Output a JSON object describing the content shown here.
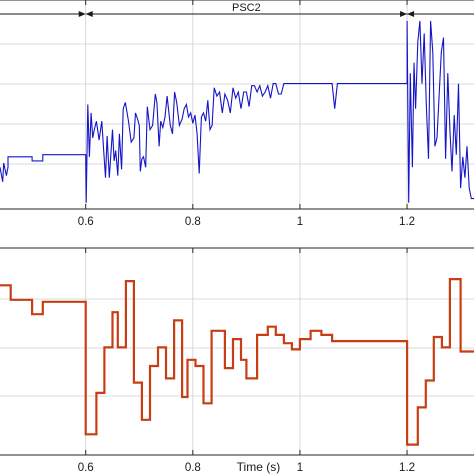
{
  "chart_data": [
    {
      "type": "line",
      "panel": "top",
      "xlim": [
        0.44,
        1.325
      ],
      "ylim": [
        0,
        10
      ],
      "xticks": [
        "0.6",
        "0.8",
        "1",
        "1.2"
      ],
      "grid": true,
      "annotation": {
        "label": "PSC2",
        "x_start": 0.6,
        "x_end": 1.2
      },
      "series": [
        {
          "color": "#1414c8",
          "x": [
            0.44,
            0.445,
            0.447,
            0.452,
            0.455,
            0.455,
            0.5,
            0.5,
            0.52,
            0.52,
            0.58,
            0.58,
            0.6,
            0.601,
            0.604,
            0.607,
            0.61,
            0.613,
            0.616,
            0.62,
            0.625,
            0.63,
            0.633,
            0.637,
            0.64,
            0.644,
            0.648,
            0.65,
            0.653,
            0.656,
            0.66,
            0.663,
            0.667,
            0.67,
            0.674,
            0.68,
            0.685,
            0.69,
            0.693,
            0.697,
            0.7,
            0.702,
            0.705,
            0.708,
            0.712,
            0.715,
            0.72,
            0.725,
            0.73,
            0.733,
            0.737,
            0.74,
            0.744,
            0.748,
            0.752,
            0.758,
            0.762,
            0.766,
            0.77,
            0.775,
            0.78,
            0.784,
            0.788,
            0.792,
            0.796,
            0.8,
            0.804,
            0.808,
            0.812,
            0.816,
            0.82,
            0.824,
            0.828,
            0.832,
            0.836,
            0.84,
            0.845,
            0.85,
            0.855,
            0.86,
            0.865,
            0.87,
            0.875,
            0.88,
            0.885,
            0.89,
            0.895,
            0.9,
            0.905,
            0.91,
            0.915,
            0.92,
            0.925,
            0.93,
            0.935,
            0.94,
            0.945,
            0.95,
            0.955,
            0.96,
            0.965,
            0.97,
            0.975,
            0.98,
            0.99,
            1.0,
            1.02,
            1.04,
            1.06,
            1.065,
            1.07,
            1.08,
            1.1,
            1.1,
            1.15,
            1.2,
            1.2,
            1.203,
            1.206,
            1.21,
            1.213,
            1.216,
            1.22,
            1.224,
            1.228,
            1.232,
            1.236,
            1.24,
            1.244,
            1.248,
            1.252,
            1.256,
            1.26,
            1.264,
            1.268,
            1.272,
            1.276,
            1.28,
            1.284,
            1.288,
            1.292,
            1.296,
            1.3,
            1.304,
            1.308,
            1.312,
            1.316,
            1.32,
            1.325
          ],
          "values": [
            2.0,
            1.3,
            2.2,
            1.6,
            2.0,
            2.5,
            2.5,
            2.3,
            2.3,
            2.6,
            2.6,
            2.6,
            2.6,
            0.3,
            5.0,
            2.5,
            4.6,
            3.4,
            3.8,
            4.2,
            3.3,
            4.2,
            3.0,
            1.5,
            3.5,
            1.5,
            3.0,
            3.8,
            2.3,
            2.8,
            1.6,
            3.6,
            1.9,
            4.8,
            5.1,
            4.2,
            3.2,
            3.4,
            4.6,
            4.3,
            4.0,
            1.8,
            2.4,
            2.5,
            2.0,
            4.9,
            3.8,
            4.0,
            5.5,
            5.1,
            3.0,
            4.2,
            3.9,
            4.4,
            5.4,
            4.0,
            3.6,
            5.6,
            5.1,
            4.0,
            4.3,
            4.8,
            5.0,
            4.4,
            4.6,
            4.1,
            4.5,
            3.6,
            1.7,
            4.4,
            4.6,
            4.2,
            5.2,
            3.8,
            4.0,
            5.8,
            5.4,
            5.6,
            4.6,
            5.5,
            5.2,
            4.6,
            5.8,
            5.3,
            5.6,
            4.8,
            5.6,
            5.6,
            4.9,
            5.9,
            5.9,
            5.6,
            5.9,
            5.4,
            5.6,
            5.9,
            5.3,
            6.0,
            6.0,
            5.5,
            5.5,
            6.0,
            6.0,
            6.0,
            6.0,
            6.0,
            6.0,
            6.0,
            6.0,
            4.8,
            6.0,
            6.0,
            6.0,
            6.0,
            6.0,
            6.0,
            9.0,
            0.3,
            6.5,
            2.0,
            7.0,
            4.8,
            8.0,
            9.0,
            6.0,
            8.4,
            5.0,
            2.4,
            9.0,
            7.5,
            3.0,
            3.4,
            5.5,
            7.5,
            8.2,
            2.4,
            6.5,
            3.8,
            1.8,
            4.5,
            2.6,
            6.0,
            1.0,
            2.5,
            1.5,
            3.0,
            1.0,
            0.5,
            0.5
          ]
        }
      ]
    },
    {
      "type": "line",
      "panel": "bottom",
      "xlim": [
        0.44,
        1.325
      ],
      "ylim": [
        0,
        10
      ],
      "xticks": [
        "0.6",
        "0.8",
        "1",
        "1.2"
      ],
      "xlabel": "Time (s)",
      "grid": true,
      "series": [
        {
          "color": "#c83e14",
          "x": [
            0.44,
            0.46,
            0.46,
            0.5,
            0.5,
            0.52,
            0.52,
            0.6,
            0.6,
            0.62,
            0.62,
            0.635,
            0.635,
            0.65,
            0.65,
            0.66,
            0.66,
            0.675,
            0.675,
            0.69,
            0.69,
            0.705,
            0.705,
            0.72,
            0.72,
            0.735,
            0.735,
            0.75,
            0.75,
            0.765,
            0.765,
            0.78,
            0.78,
            0.79,
            0.79,
            0.805,
            0.805,
            0.82,
            0.82,
            0.835,
            0.835,
            0.86,
            0.86,
            0.875,
            0.875,
            0.89,
            0.89,
            0.9,
            0.9,
            0.92,
            0.92,
            0.94,
            0.94,
            0.955,
            0.955,
            0.97,
            0.97,
            0.985,
            0.985,
            1.0,
            1.0,
            1.02,
            1.02,
            1.04,
            1.04,
            1.06,
            1.06,
            1.08,
            1.08,
            1.2,
            1.2,
            1.22,
            1.22,
            1.235,
            1.235,
            1.25,
            1.25,
            1.265,
            1.265,
            1.28,
            1.28,
            1.3,
            1.3,
            1.325
          ],
          "values": [
            8.2,
            8.2,
            7.5,
            7.5,
            6.8,
            6.8,
            7.4,
            7.4,
            1.0,
            1.0,
            3.0,
            3.0,
            5.2,
            5.2,
            6.9,
            6.9,
            5.2,
            5.2,
            8.4,
            8.4,
            3.5,
            3.5,
            1.7,
            1.7,
            4.3,
            4.3,
            5.2,
            5.2,
            3.7,
            3.7,
            6.5,
            6.5,
            2.8,
            2.8,
            4.6,
            4.6,
            4.3,
            4.3,
            2.5,
            2.5,
            6.0,
            6.0,
            4.2,
            4.2,
            5.6,
            5.6,
            4.6,
            4.6,
            3.7,
            3.7,
            5.8,
            5.8,
            6.2,
            6.2,
            5.8,
            5.8,
            5.4,
            5.4,
            5.1,
            5.1,
            5.6,
            5.6,
            6.0,
            6.0,
            5.8,
            5.8,
            5.5,
            5.5,
            5.5,
            5.5,
            0.5,
            0.5,
            2.3,
            2.3,
            3.6,
            3.6,
            5.7,
            5.7,
            5.2,
            5.2,
            8.5,
            8.5,
            5.0,
            5.0
          ]
        }
      ]
    }
  ]
}
